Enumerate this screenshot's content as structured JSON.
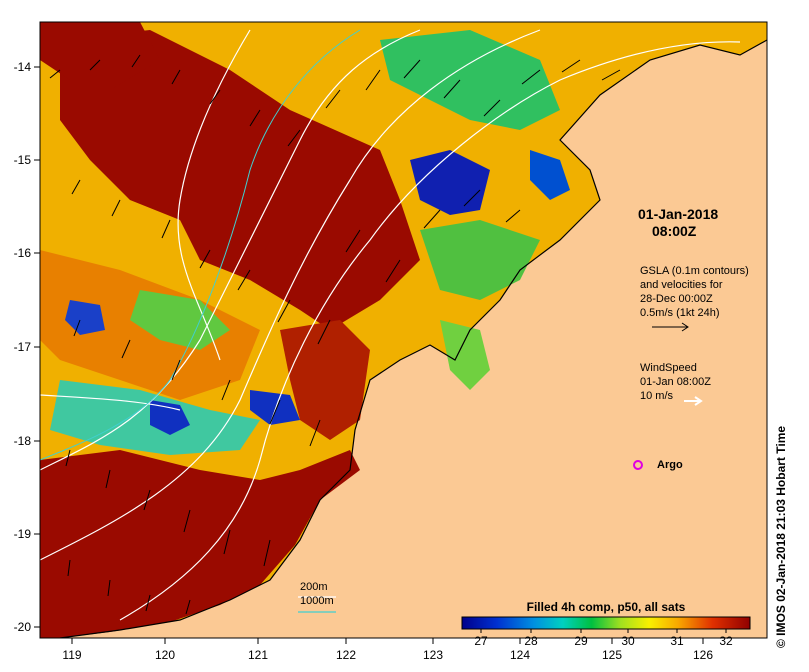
{
  "title_date": "01-Jan-2018",
  "title_time": "08:00Z",
  "gsla_text": {
    "line1": "GSLA (0.1m contours)",
    "line2": "and velocities for",
    "line3": "28-Dec 00:00Z",
    "line4": "0.5m/s (1kt 24h)"
  },
  "wind_text": {
    "line1": "WindSpeed",
    "line2": "01-Jan 08:00Z",
    "line3": "10 m/s"
  },
  "argo_label": "Argo",
  "depth_legend": {
    "line1": "200m",
    "line2": "1000m"
  },
  "colorbar": {
    "title": "Filled 4h comp, p50, all sats",
    "ticks": [
      "27",
      "28",
      "29",
      "30",
      "31",
      "32"
    ]
  },
  "credit": "IMOS 02-Jan-2018 21:03 Hobart Time",
  "x_ticks": [
    "119",
    "120",
    "121",
    "122",
    "123",
    "124",
    "125",
    "126"
  ],
  "y_ticks": [
    "-14",
    "-15",
    "-16",
    "-17",
    "-18",
    "-19",
    "-20"
  ],
  "colors": {
    "land": "#fbc994",
    "sst_low": "#00008b",
    "sst_high": "#990000",
    "contour": "#ffffff",
    "argo": "#e000e0"
  }
}
